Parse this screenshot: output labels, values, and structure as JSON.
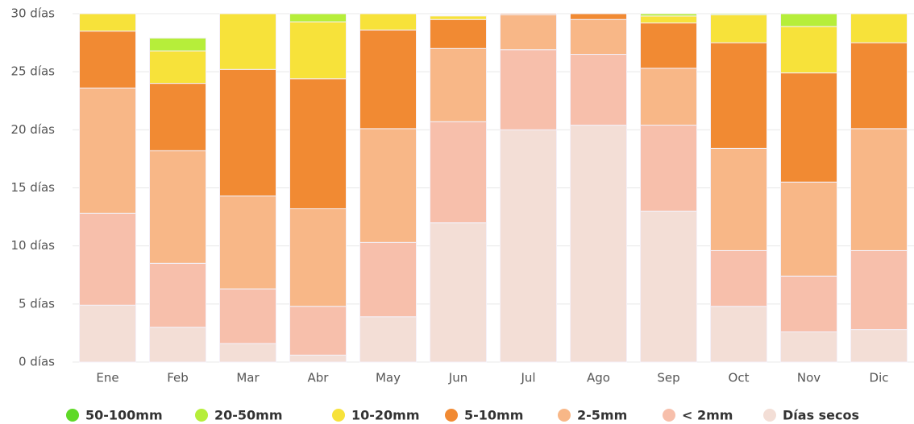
{
  "chart_data": {
    "type": "stacked_bar",
    "categories": [
      "Ene",
      "Feb",
      "Mar",
      "Abr",
      "May",
      "Jun",
      "Jul",
      "Ago",
      "Sep",
      "Oct",
      "Nov",
      "Dic"
    ],
    "ylim": [
      0,
      30
    ],
    "yticks": [
      {
        "value": 0,
        "label": "0 días"
      },
      {
        "value": 5,
        "label": "5 días"
      },
      {
        "value": 10,
        "label": "10 días"
      },
      {
        "value": 15,
        "label": "15 días"
      },
      {
        "value": 20,
        "label": "20 días"
      },
      {
        "value": 25,
        "label": "25 días"
      },
      {
        "value": 30,
        "label": "30 días"
      }
    ],
    "grid": true,
    "series": [
      {
        "name": "50-100mm",
        "color": "#5fd927",
        "values": [
          0,
          0,
          0,
          0,
          0,
          0,
          0,
          0,
          0,
          0,
          0,
          0
        ]
      },
      {
        "name": "20-50mm",
        "color": "#b6ee3a",
        "values": [
          0,
          1.1,
          0,
          0.7,
          0,
          0,
          0,
          0,
          0.2,
          0.1,
          1.1,
          0
        ]
      },
      {
        "name": "10-20mm",
        "color": "#f7e23a",
        "values": [
          1.5,
          2.8,
          4.8,
          4.9,
          1.4,
          0.3,
          0,
          0,
          0.6,
          2.4,
          4.0,
          2.5
        ]
      },
      {
        "name": "5-10mm",
        "color": "#f18a33",
        "values": [
          4.9,
          5.8,
          10.9,
          11.2,
          8.5,
          2.5,
          0.1,
          0.5,
          3.9,
          9.1,
          9.4,
          7.4
        ]
      },
      {
        "name": "2-5mm",
        "color": "#f8b787",
        "values": [
          10.8,
          9.7,
          8.0,
          8.4,
          9.8,
          6.3,
          3.0,
          3.0,
          4.9,
          8.8,
          8.1,
          10.5
        ]
      },
      {
        "name": "< 2mm",
        "color": "#f7bfab",
        "values": [
          7.9,
          5.5,
          4.7,
          4.2,
          6.4,
          8.7,
          6.9,
          6.1,
          7.4,
          4.8,
          4.8,
          6.8
        ]
      },
      {
        "name": "Días secos",
        "color": "#f3ded6",
        "values": [
          4.9,
          3.0,
          1.6,
          0.6,
          3.9,
          12.0,
          20.0,
          20.4,
          13.0,
          4.8,
          2.6,
          2.8
        ]
      }
    ]
  }
}
